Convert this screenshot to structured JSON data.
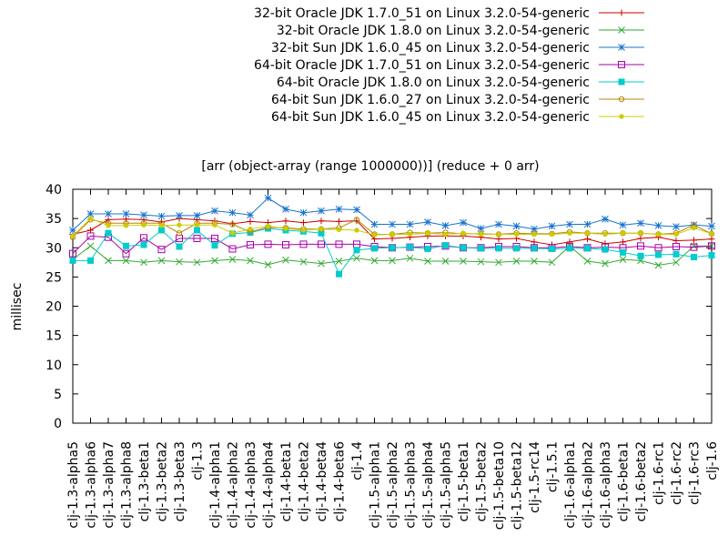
{
  "chart_data": {
    "type": "line",
    "title": "[arr (object-array (range 1000000))] (reduce + 0 arr)",
    "xlabel": "",
    "ylabel": "millisec",
    "ylim": [
      0,
      40
    ],
    "yticks": [
      0,
      5,
      10,
      15,
      20,
      25,
      30,
      35,
      40
    ],
    "grid": false,
    "legend_position": "top-right",
    "categories": [
      "clj-1.3-alpha5",
      "clj-1.3-alpha6",
      "clj-1.3-alpha7",
      "clj-1.3-alpha8",
      "clj-1.3-beta1",
      "clj-1.3-beta2",
      "clj-1.3-beta3",
      "clj-1.3",
      "clj-1.4-alpha1",
      "clj-1.4-alpha2",
      "clj-1.4-alpha3",
      "clj-1.4-alpha4",
      "clj-1.4-beta1",
      "clj-1.4-beta2",
      "clj-1.4-beta4",
      "clj-1.4-beta6",
      "clj-1.4",
      "clj-1.5-alpha1",
      "clj-1.5-alpha2",
      "clj-1.5-alpha3",
      "clj-1.5-alpha4",
      "clj-1.5-alpha5",
      "clj-1.5-beta1",
      "clj-1.5-beta2",
      "clj-1.5-beta10",
      "clj-1.5-beta12",
      "clj-1.5-rc14",
      "clj-1.5.1",
      "clj-1.6-alpha1",
      "clj-1.6-alpha2",
      "clj-1.6-alpha3",
      "clj-1.6-beta1",
      "clj-1.6-beta2",
      "clj-1.6-rc1",
      "clj-1.6-rc2",
      "clj-1.6-rc3",
      "clj-1.6"
    ],
    "series": [
      {
        "name": "32-bit Oracle JDK 1.7.0_51 on Linux 3.2.0-54-generic",
        "color": "#cc0000",
        "marker": "plus",
        "values": [
          32.3,
          33.0,
          34.8,
          34.9,
          34.8,
          34.4,
          35.0,
          34.8,
          34.6,
          34.1,
          34.5,
          34.3,
          34.6,
          34.3,
          34.6,
          34.5,
          34.6,
          31.5,
          31.6,
          31.8,
          32.0,
          32.0,
          32.0,
          31.8,
          31.5,
          31.6,
          31.0,
          30.5,
          31.0,
          31.5,
          30.7,
          31.0,
          31.6,
          31.8,
          31.2,
          31.3,
          31.5
        ]
      },
      {
        "name": "32-bit Oracle JDK 1.8.0 on Linux 3.2.0-54-generic",
        "color": "#33aa33",
        "marker": "x",
        "values": [
          28.0,
          30.3,
          27.8,
          27.8,
          27.5,
          27.8,
          27.6,
          27.5,
          27.8,
          28.0,
          27.8,
          27.1,
          27.9,
          27.6,
          27.3,
          27.7,
          28.2,
          27.8,
          27.8,
          28.2,
          27.7,
          27.7,
          27.7,
          27.6,
          27.5,
          27.7,
          27.7,
          27.5,
          30.3,
          27.7,
          27.3,
          28.0,
          27.8,
          27.0,
          27.5,
          30.3,
          30.3
        ]
      },
      {
        "name": "32-bit Sun JDK 1.6.0_45 on Linux 3.2.0-54-generic",
        "color": "#1874cd",
        "marker": "star",
        "values": [
          33.0,
          35.8,
          35.8,
          35.8,
          35.6,
          35.4,
          35.5,
          35.5,
          36.3,
          36.0,
          35.6,
          38.5,
          36.6,
          36.0,
          36.3,
          36.6,
          36.5,
          34.0,
          34.0,
          34.0,
          34.4,
          33.8,
          34.3,
          33.3,
          34.0,
          33.7,
          33.2,
          33.7,
          34.0,
          34.0,
          34.9,
          33.9,
          34.2,
          33.8,
          33.6,
          33.9,
          33.7
        ]
      },
      {
        "name": "64-bit Oracle JDK 1.7.0_51 on Linux 3.2.0-54-generic",
        "color": "#aa00aa",
        "marker": "square",
        "values": [
          29.0,
          32.0,
          31.8,
          29.0,
          31.7,
          29.7,
          31.6,
          31.6,
          31.6,
          29.8,
          30.5,
          30.6,
          30.5,
          30.6,
          30.6,
          30.6,
          30.6,
          30.2,
          30.0,
          30.1,
          30.2,
          30.3,
          30.0,
          30.0,
          30.2,
          30.2,
          30.0,
          30.0,
          30.2,
          30.0,
          30.1,
          30.0,
          30.3,
          30.0,
          30.2,
          30.1,
          30.3
        ]
      },
      {
        "name": "64-bit Oracle JDK 1.8.0 on Linux 3.2.0-54-generic",
        "color": "#00cccc",
        "marker": "filled-square",
        "values": [
          27.8,
          27.8,
          32.5,
          30.3,
          30.5,
          33.0,
          30.2,
          33.0,
          30.4,
          32.4,
          32.6,
          33.3,
          33.0,
          32.8,
          32.5,
          25.5,
          29.6,
          29.9,
          30.0,
          30.1,
          29.8,
          30.4,
          30.0,
          29.9,
          29.9,
          29.9,
          29.9,
          29.8,
          29.9,
          29.9,
          29.7,
          29.2,
          28.6,
          28.8,
          28.9,
          28.4,
          28.7
        ]
      },
      {
        "name": "64-bit Sun JDK 1.6.0_27 on Linux 3.2.0-54-generic",
        "color": "#b8860b",
        "marker": "circle",
        "values": [
          31.8,
          34.8,
          34.2,
          34.2,
          34.2,
          34.2,
          32.5,
          34.2,
          34.2,
          34.0,
          32.7,
          33.5,
          33.4,
          33.2,
          33.2,
          33.4,
          34.8,
          32.3,
          32.3,
          32.6,
          32.5,
          32.6,
          32.4,
          32.4,
          32.3,
          32.5,
          32.4,
          32.4,
          32.7,
          32.5,
          32.5,
          32.5,
          32.5,
          32.3,
          32.5,
          33.9,
          32.4
        ]
      },
      {
        "name": "64-bit Sun JDK 1.6.0_45 on Linux 3.2.0-54-generic",
        "color": "#cccc00",
        "marker": "filled-circle",
        "values": [
          32.0,
          35.0,
          33.8,
          33.8,
          33.9,
          33.8,
          33.9,
          33.9,
          33.9,
          32.5,
          33.2,
          33.7,
          33.3,
          33.0,
          33.2,
          33.1,
          33.0,
          32.2,
          32.3,
          32.3,
          32.5,
          32.3,
          32.5,
          32.3,
          32.3,
          32.3,
          32.3,
          32.3,
          32.5,
          32.5,
          32.3,
          32.5,
          32.5,
          32.3,
          32.3,
          33.4,
          32.4
        ]
      }
    ]
  }
}
